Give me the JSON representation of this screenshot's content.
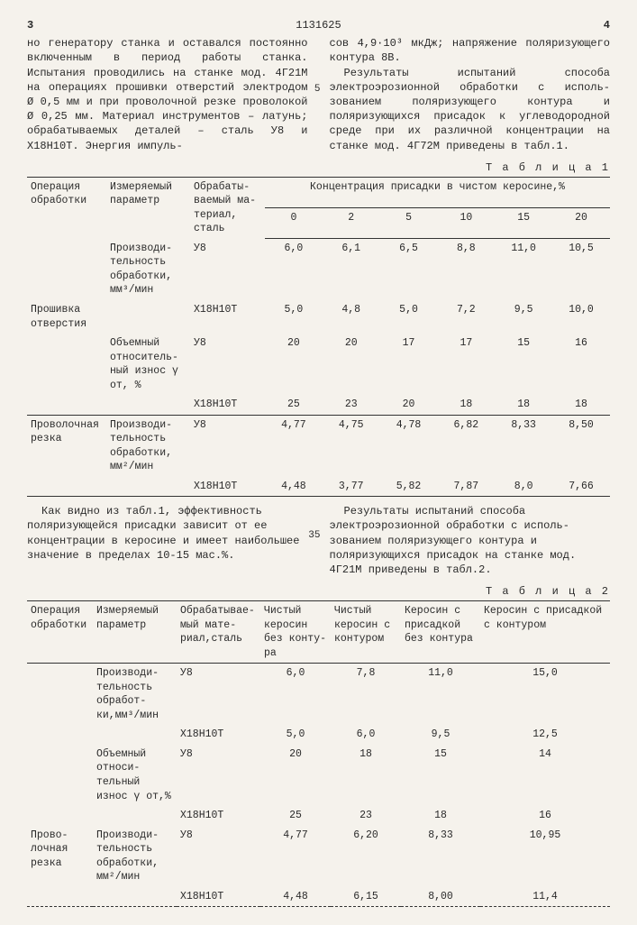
{
  "header": {
    "left_page": "3",
    "doc_number": "1131625",
    "right_page": "4"
  },
  "left_paragraph": "но генератору станка и оставался постоянно включенным в период работы станка. Испытания проводились на станке мод. 4Г21М на операциях про­шивки отверстий электродом Ø 0,5 мм и при проволочной резке проволокой Ø 0,25 мм. Материал инструментов – латунь; обрабатываемых деталей – сталь У8 и Х18Н10Т. Энергия импуль-",
  "right_paragraph_1": "сов 4,9·10³ мкДж; напряжение поляри­зующего контура 8В.",
  "right_paragraph_2": "Результаты испытаний способа электроэрозионной обработки с исполь­зованием поляризующего контура и поляризующихся присадок к углеводо­родной среде при их различной кон­центрации на станке мод. 4Г72М при­ведены в табл.1.",
  "margin_5": "5",
  "table1_label": "Т а б л и ц а 1",
  "table1": {
    "headers": {
      "c1": "Операция об­работки",
      "c2": "Измеряемый параметр",
      "c3": "Обрабаты­ваемый ма­териал, сталь",
      "c4": "Концентрация присадки в чистом керо­сине,%",
      "sub": [
        "0",
        "2",
        "5",
        "10",
        "15",
        "20"
      ]
    },
    "rows": [
      {
        "op": "",
        "param": "Производи­тельность обработки, мм³/мин",
        "mat": "У8",
        "vals": [
          "6,0",
          "6,1",
          "6,5",
          "8,8",
          "11,0",
          "10,5"
        ]
      },
      {
        "op": "Прошивка от­верстия",
        "param": "",
        "mat": "Х18Н10Т",
        "vals": [
          "5,0",
          "4,8",
          "5,0",
          "7,2",
          "9,5",
          "10,0"
        ]
      },
      {
        "op": "",
        "param": "Объемный относитель­ный износ γ от, %",
        "mat": "У8",
        "vals": [
          "20",
          "20",
          "17",
          "17",
          "15",
          "16"
        ]
      },
      {
        "op": "",
        "param": "",
        "mat": "Х18Н10Т",
        "vals": [
          "25",
          "23",
          "20",
          "18",
          "18",
          "18"
        ]
      },
      {
        "op": "Проволочная резка",
        "param": "Производи­тельность обработки, мм²/мин",
        "mat": "У8",
        "vals": [
          "4,77",
          "4,75",
          "4,78",
          "6,82",
          "8,33",
          "8,50"
        ]
      },
      {
        "op": "",
        "param": "",
        "mat": "Х18Н10Т",
        "vals": [
          "4,48",
          "3,77",
          "5,82",
          "7,87",
          "8,0",
          "7,66"
        ]
      }
    ]
  },
  "mid_left": "Как видно из табл.1, эффектив­ность поляризующейся присадки зави­сит от ее концентрации в керосине и имеет наибольшее значение в пре­делах 10-15 мас.%.",
  "mid_right": "Результаты испытаний способа электроэрозионной обработки с исполь­зованием поляризующего контура и поляризующихся присадок на станке мод. 4Г21М приведены в табл.2.",
  "margin_35": "35",
  "table2_label": "Т а б л и ц а 2",
  "table2": {
    "headers": {
      "c1": "Операция обработ­ки",
      "c2": "Измеряемый параметр",
      "c3": "Обрабатывае­мый мате­риал,сталь",
      "c4": "Чистый керо­син без конту­ра",
      "c5": "Чистый керо­син с конту­ром",
      "c6": "Керосин с присад­кой без контура",
      "c7": "Керосин с присадкой с контуром"
    },
    "rows": [
      {
        "op": "",
        "param": "Производи­тельность обработ­ки,мм³/мин",
        "mat": "У8",
        "vals": [
          "6,0",
          "7,8",
          "11,0",
          "15,0"
        ]
      },
      {
        "op": "",
        "param": "",
        "mat": "Х18Н10Т",
        "vals": [
          "5,0",
          "6,0",
          "9,5",
          "12,5"
        ]
      },
      {
        "op": "",
        "param": "Объемный относи­тельный износ γ от,%",
        "mat": "У8",
        "vals": [
          "20",
          "18",
          "15",
          "14"
        ]
      },
      {
        "op": "",
        "param": "",
        "mat": "Х18Н10Т",
        "vals": [
          "25",
          "23",
          "18",
          "16"
        ]
      },
      {
        "op": "Прово­лочная резка",
        "param": "Производи­тельность обработки, мм²/мин",
        "mat": "У8",
        "vals": [
          "4,77",
          "6,20",
          "8,33",
          "10,95"
        ]
      },
      {
        "op": "",
        "param": "",
        "mat": "Х18Н10Т",
        "vals": [
          "4,48",
          "6,15",
          "8,00",
          "11,4"
        ]
      }
    ]
  }
}
